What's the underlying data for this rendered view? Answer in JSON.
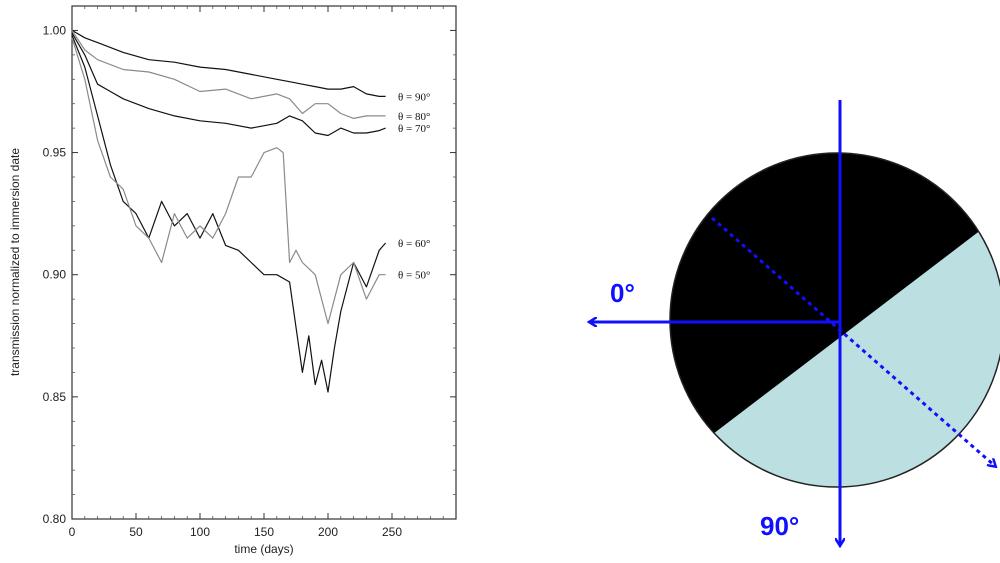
{
  "chart_data": {
    "type": "line",
    "xlabel": "time (days)",
    "ylabel": "transmission normalized to immersion date",
    "xlim": [
      0,
      300
    ],
    "ylim": [
      0.8,
      1.01
    ],
    "x_ticks": [
      0,
      50,
      100,
      150,
      200,
      250
    ],
    "y_ticks": [
      0.8,
      0.85,
      0.9,
      0.95,
      1.0
    ],
    "x_tick_labels": [
      "0",
      "50",
      "100",
      "150",
      "200",
      "250"
    ],
    "y_tick_labels": [
      "0.80",
      "0.85",
      "0.90",
      "0.95",
      "1.00"
    ],
    "grid": false,
    "legend": "inline labels at right end of each curve",
    "series": [
      {
        "name": "θ = 90°",
        "color": "#111111",
        "x": [
          0,
          10,
          20,
          40,
          60,
          80,
          100,
          120,
          140,
          160,
          170,
          180,
          190,
          200,
          210,
          220,
          230,
          240,
          245
        ],
        "y": [
          1.0,
          0.997,
          0.995,
          0.991,
          0.988,
          0.987,
          0.985,
          0.984,
          0.982,
          0.98,
          0.979,
          0.978,
          0.977,
          0.976,
          0.976,
          0.977,
          0.974,
          0.973,
          0.973
        ]
      },
      {
        "name": "θ = 80°",
        "color": "#8a8a8a",
        "x": [
          0,
          10,
          20,
          40,
          60,
          80,
          100,
          120,
          140,
          160,
          170,
          180,
          190,
          200,
          210,
          220,
          230,
          240,
          245
        ],
        "y": [
          1.0,
          0.992,
          0.988,
          0.984,
          0.983,
          0.98,
          0.975,
          0.976,
          0.972,
          0.974,
          0.972,
          0.966,
          0.97,
          0.97,
          0.966,
          0.964,
          0.965,
          0.965,
          0.965
        ]
      },
      {
        "name": "θ = 70°",
        "color": "#111111",
        "x": [
          0,
          10,
          20,
          30,
          40,
          50,
          60,
          80,
          100,
          120,
          140,
          160,
          170,
          180,
          190,
          200,
          210,
          220,
          230,
          240,
          245
        ],
        "y": [
          0.999,
          0.99,
          0.978,
          0.975,
          0.972,
          0.97,
          0.968,
          0.965,
          0.963,
          0.962,
          0.96,
          0.962,
          0.965,
          0.963,
          0.958,
          0.957,
          0.96,
          0.958,
          0.958,
          0.959,
          0.96
        ]
      },
      {
        "name": "θ = 60°",
        "color": "#111111",
        "x": [
          0,
          10,
          20,
          30,
          40,
          50,
          60,
          70,
          80,
          90,
          100,
          110,
          120,
          130,
          140,
          150,
          160,
          170,
          180,
          185,
          190,
          195,
          200,
          205,
          210,
          220,
          230,
          240,
          245
        ],
        "y": [
          0.998,
          0.985,
          0.965,
          0.945,
          0.93,
          0.925,
          0.915,
          0.93,
          0.92,
          0.925,
          0.915,
          0.925,
          0.912,
          0.91,
          0.905,
          0.9,
          0.9,
          0.897,
          0.86,
          0.875,
          0.855,
          0.865,
          0.852,
          0.87,
          0.885,
          0.905,
          0.895,
          0.91,
          0.913
        ]
      },
      {
        "name": "θ = 50°",
        "color": "#8a8a8a",
        "x": [
          0,
          10,
          20,
          30,
          40,
          50,
          60,
          70,
          80,
          90,
          100,
          110,
          120,
          130,
          140,
          150,
          160,
          165,
          170,
          175,
          180,
          190,
          200,
          210,
          220,
          230,
          240,
          245
        ],
        "y": [
          0.997,
          0.98,
          0.955,
          0.94,
          0.935,
          0.92,
          0.915,
          0.905,
          0.925,
          0.915,
          0.92,
          0.915,
          0.925,
          0.94,
          0.94,
          0.95,
          0.952,
          0.95,
          0.905,
          0.91,
          0.905,
          0.9,
          0.88,
          0.9,
          0.905,
          0.89,
          0.9,
          0.9
        ]
      }
    ]
  },
  "diagram": {
    "colors": {
      "dark_half": "#000000",
      "light_half": "#bcdfe1",
      "arrow": "#1010ff"
    },
    "labels": {
      "zero_deg": "0°",
      "ninety_deg": "90°"
    }
  }
}
